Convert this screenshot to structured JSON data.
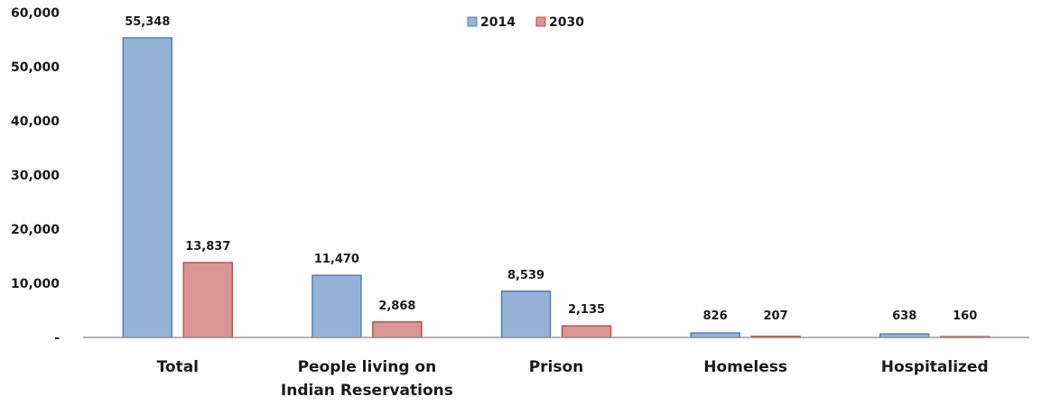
{
  "chart_data": {
    "type": "bar",
    "categories": [
      [
        "Total"
      ],
      [
        "People living on",
        "Indian Reservations"
      ],
      [
        "Prison"
      ],
      [
        "Homeless"
      ],
      [
        "Hospitalized"
      ]
    ],
    "series": [
      {
        "name": "2014",
        "color": "#4F81BD",
        "fill": "#95B3D7",
        "values": [
          55348,
          11470,
          8539,
          826,
          638
        ],
        "labels": [
          "55,348",
          "11,470",
          "8,539",
          "826",
          "638"
        ]
      },
      {
        "name": "2030",
        "color": "#C0504D",
        "fill": "#D99694",
        "values": [
          13837,
          2868,
          2135,
          207,
          160
        ],
        "labels": [
          "13,837",
          "2,868",
          "2,135",
          "207",
          "160"
        ]
      }
    ],
    "yticks": [
      {
        "value": 60000,
        "label": "60,000"
      },
      {
        "value": 50000,
        "label": "50,000"
      },
      {
        "value": 40000,
        "label": "40,000"
      },
      {
        "value": 30000,
        "label": "30,000"
      },
      {
        "value": 20000,
        "label": "20,000"
      },
      {
        "value": 10000,
        "label": "10,000"
      },
      {
        "value": 0,
        "label": "-"
      }
    ],
    "ylim": [
      0,
      60000
    ],
    "grid": false,
    "legend_position": "top-center",
    "title": "",
    "xlabel": "",
    "ylabel": ""
  }
}
